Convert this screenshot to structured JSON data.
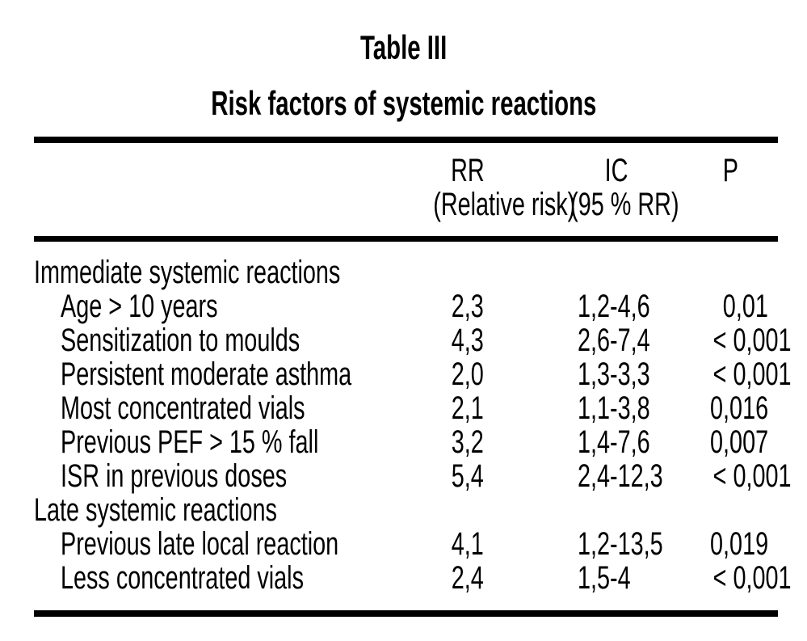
{
  "title": "Table III",
  "subtitle": "Risk factors of systemic reactions",
  "table": {
    "columns": [
      {
        "label": "",
        "sublabel": ""
      },
      {
        "label": "RR",
        "sublabel": "(Relative risk)"
      },
      {
        "label": "IC",
        "sublabel": "(95 % RR)"
      },
      {
        "label": "P",
        "sublabel": ""
      }
    ],
    "rows": [
      {
        "group": true,
        "label": "Immediate systemic reactions",
        "rr": "",
        "ic": "",
        "p": ""
      },
      {
        "group": false,
        "label": "Age > 10 years",
        "rr": "2,3",
        "ic": "1,2-4,6",
        "p": "0,01"
      },
      {
        "group": false,
        "label": "Sensitization to moulds",
        "rr": "4,3",
        "ic": "2,6-7,4",
        "p": "< 0,001"
      },
      {
        "group": false,
        "label": "Persistent moderate asthma",
        "rr": "2,0",
        "ic": "1,3-3,3",
        "p": "< 0,001"
      },
      {
        "group": false,
        "label": "Most concentrated vials",
        "rr": "2,1",
        "ic": "1,1-3,8",
        "p": "0,016"
      },
      {
        "group": false,
        "label": "Previous PEF > 15 % fall",
        "rr": "3,2",
        "ic": "1,4-7,6",
        "p": "0,007"
      },
      {
        "group": false,
        "label": "ISR in previous doses",
        "rr": "5,4",
        "ic": "2,4-12,3",
        "p": "< 0,001"
      },
      {
        "group": true,
        "label": "Late systemic reactions",
        "rr": "",
        "ic": "",
        "p": ""
      },
      {
        "group": false,
        "label": "Previous late local reaction",
        "rr": "4,1",
        "ic": "1,2-13,5",
        "p": "0,019"
      },
      {
        "group": false,
        "label": "Less concentrated vials",
        "rr": "2,4",
        "ic": "1,5-4",
        "p": "< 0,001"
      }
    ]
  }
}
